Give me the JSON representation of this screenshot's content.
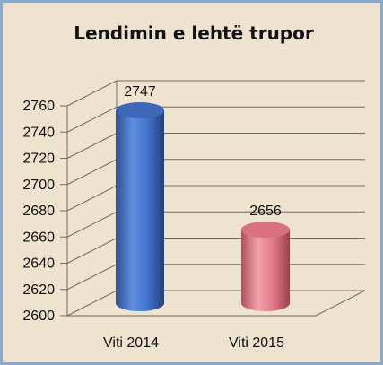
{
  "chart_data": {
    "type": "bar",
    "title": "Lendimin e lehtë trupor",
    "categories": [
      "Viti 2014",
      "Viti 2015"
    ],
    "values": [
      2747,
      2656
    ],
    "data_labels": [
      "2747",
      "2656"
    ],
    "ylim": [
      2600,
      2760
    ],
    "yticks": [
      "2600",
      "2620",
      "2640",
      "2660",
      "2680",
      "2700",
      "2720",
      "2740",
      "2760"
    ],
    "grid": true,
    "style": "3d-cylinder",
    "colors": [
      "#4472c4",
      "#e07a8a"
    ],
    "background": "#ede3cf",
    "border_color": "#8ea9c8"
  }
}
